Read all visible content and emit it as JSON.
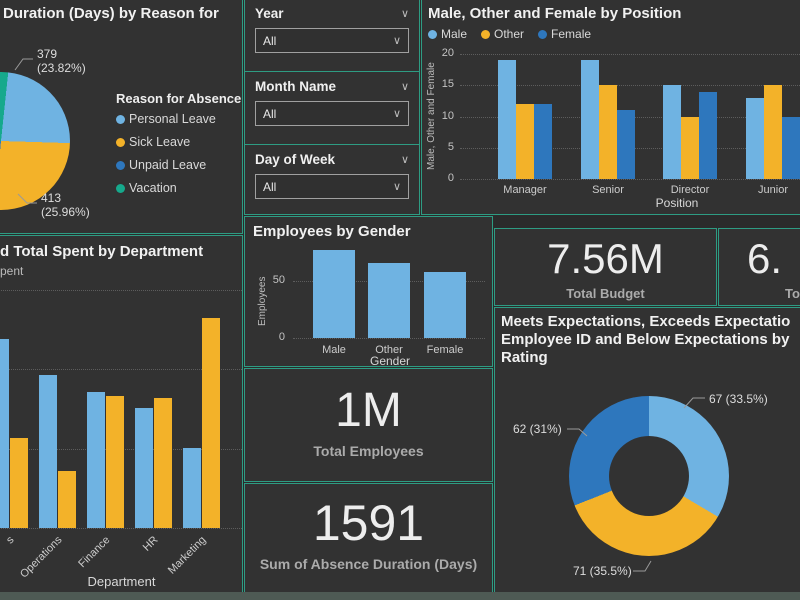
{
  "colors": {
    "light_blue": "#6fb3e2",
    "yellow": "#f3b229",
    "dark_blue": "#2e77bd",
    "teal": "#16a98c",
    "accent_border": "#2e9c83",
    "panel_bg": "#323232",
    "page_bg": "#2b2b2b",
    "bottom_strip": "#4e5a54"
  },
  "slicers": [
    {
      "label": "Year",
      "value": "All"
    },
    {
      "label": "Month Name",
      "value": "All"
    },
    {
      "label": "Day of Week",
      "value": "All"
    }
  ],
  "cards": [
    {
      "value": "7.56M",
      "label": "Total Budget"
    },
    {
      "value": "6.",
      "label": "To"
    },
    {
      "value": "1M",
      "label": "Total Employees"
    },
    {
      "value": "1591",
      "label": "Sum of Absence Duration (Days)"
    }
  ],
  "chart_data": [
    {
      "id": "pie-absence-reason",
      "type": "pie",
      "title_visible": "Duration (Days) by Reason for",
      "legend_title": "Reason for Absence",
      "slices": [
        {
          "label": "Personal Leave",
          "value": 379,
          "pct": 23.82,
          "pct_label": "(23.82%)",
          "color": "light_blue"
        },
        {
          "label": "Sick Leave",
          "value": 413,
          "pct": 25.96,
          "pct_label": "(25.96%)",
          "color": "yellow"
        },
        {
          "label": "Unpaid Leave",
          "value": null,
          "pct": null,
          "color": "dark_blue"
        },
        {
          "label": "Vacation",
          "value": null,
          "pct": null,
          "color": "teal"
        }
      ]
    },
    {
      "id": "bar-position",
      "type": "bar",
      "title": "Male, Other and Female by Position",
      "categories": [
        "Manager",
        "Senior",
        "Director",
        "Junior"
      ],
      "series": [
        {
          "name": "Male",
          "color": "light_blue",
          "values": [
            19,
            19,
            15,
            13
          ]
        },
        {
          "name": "Other",
          "color": "yellow",
          "values": [
            12,
            15,
            10,
            15
          ]
        },
        {
          "name": "Female",
          "color": "dark_blue",
          "values": [
            12,
            11,
            14,
            10
          ]
        }
      ],
      "ylabel": "Male, Other and Female",
      "xlabel": "Position",
      "yticks": [
        0,
        5,
        10,
        15,
        20
      ],
      "ylim": [
        0,
        20
      ],
      "values_estimated": true
    },
    {
      "id": "bar-department",
      "type": "bar",
      "title_visible": "d Total Spent by Department",
      "legend_visible": "pent",
      "categories_visible": [
        "s",
        "Operations",
        "Finance",
        "HR",
        "Marketing"
      ],
      "xlabel": "Department",
      "series": [
        {
          "name": "blue series (legend cut off)",
          "color": "light_blue",
          "values_relative": [
            90,
            73,
            65,
            57,
            38
          ]
        },
        {
          "name": "yellow series (legend cut off)",
          "color": "yellow",
          "values_relative": [
            43,
            27,
            63,
            62,
            100
          ]
        }
      ],
      "yaxis_visible": false,
      "values_estimated": true
    },
    {
      "id": "bar-gender",
      "type": "bar",
      "title": "Employees by Gender",
      "categories": [
        "Male",
        "Other",
        "Female"
      ],
      "values": [
        77,
        66,
        58
      ],
      "color": "light_blue",
      "ylabel": "Employees",
      "xlabel": "Gender",
      "yticks": [
        0,
        50
      ],
      "ylim": [
        0,
        90
      ],
      "values_estimated": true
    },
    {
      "id": "donut-rating",
      "type": "pie",
      "donut": true,
      "title_lines": [
        "Meets Expectations, Exceeds Expectatio",
        "Employee ID and Below Expectations by",
        "Rating"
      ],
      "slices": [
        {
          "value": 67,
          "pct": 33.5,
          "label": "67 (33.5%)",
          "color": "light_blue"
        },
        {
          "value": 71,
          "pct": 35.5,
          "label": "71 (35.5%)",
          "color": "yellow"
        },
        {
          "value": 62,
          "pct": 31.0,
          "label": "62 (31%)",
          "color": "dark_blue"
        }
      ]
    }
  ]
}
